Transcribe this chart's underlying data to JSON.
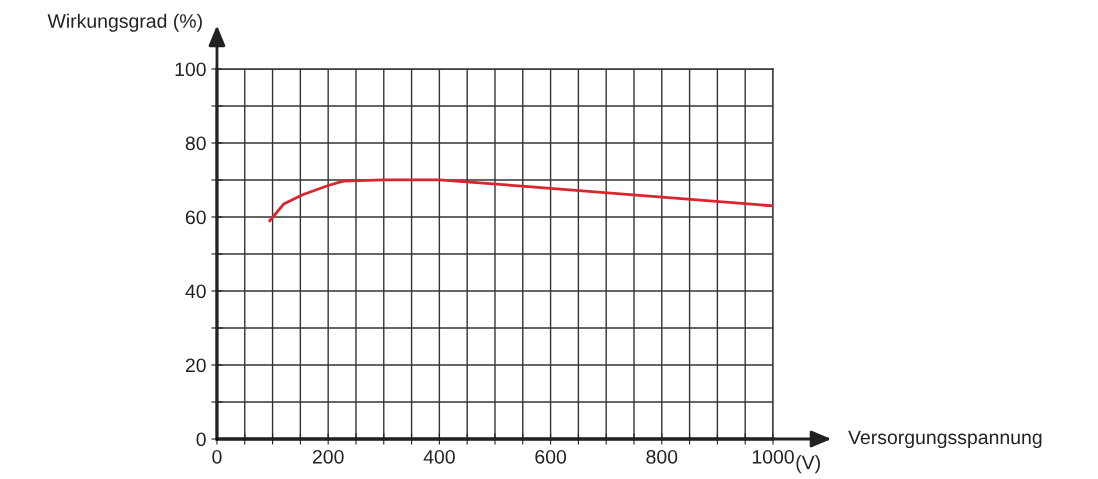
{
  "chart_data": {
    "type": "line",
    "xlabel": "Versorgungsspannung",
    "ylabel": "Wirkungsgrad (%)",
    "annotations": [
      "(V)"
    ],
    "x": [
      95,
      120,
      154,
      200,
      227,
      300,
      400,
      554,
      1000
    ],
    "series": [
      {
        "color": "#d9262e",
        "values": [
          59,
          63.5,
          66,
          68.5,
          69.7,
          70,
          70,
          68.3,
          63
        ]
      }
    ],
    "xlim": [
      0,
      1000
    ],
    "ylim": [
      0,
      100
    ],
    "xticks": [
      0,
      {
        "value": 50,
        "label": null
      },
      {
        "value": 100,
        "label": null
      },
      {
        "value": 150,
        "label": null
      },
      200,
      {
        "value": 250,
        "label": null
      },
      {
        "value": 300,
        "label": null
      },
      {
        "value": 350,
        "label": null
      },
      400,
      {
        "value": 450,
        "label": null
      },
      {
        "value": 500,
        "label": null
      },
      {
        "value": 550,
        "label": null
      },
      600,
      {
        "value": 650,
        "label": null
      },
      {
        "value": 700,
        "label": null
      },
      {
        "value": 750,
        "label": null
      },
      800,
      {
        "value": 850,
        "label": null
      },
      {
        "value": 900,
        "label": null
      },
      {
        "value": 950,
        "label": null
      },
      1000
    ],
    "yticks": [
      0,
      {
        "value": 10,
        "label": null
      },
      20,
      {
        "value": 30,
        "label": null
      },
      40,
      {
        "value": 50,
        "label": null
      },
      60,
      {
        "value": 70,
        "label": null
      },
      80,
      {
        "value": 90,
        "label": null
      },
      100
    ],
    "grid": true,
    "marker": "none",
    "line_style": "solid"
  }
}
